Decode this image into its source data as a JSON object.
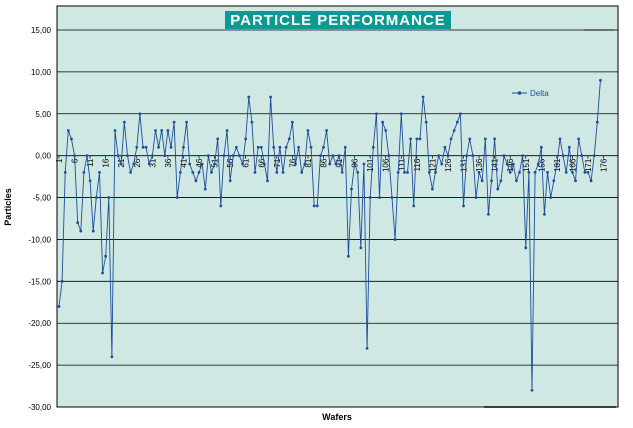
{
  "chart_data": {
    "type": "line",
    "title": "PARTICLE PERFORMANCE",
    "xlabel": "Wafers",
    "ylabel": "Particles",
    "ylim": [
      -30,
      15
    ],
    "yticks": [
      "15,00",
      "10,00",
      "5,00",
      "0,00",
      "-5,00",
      "-10,00",
      "-15,00",
      "-20,00",
      "-25,00",
      "-30,00"
    ],
    "xlim": [
      1,
      180
    ],
    "xticks": [
      1,
      6,
      11,
      16,
      21,
      26,
      31,
      36,
      41,
      46,
      51,
      56,
      61,
      66,
      71,
      76,
      81,
      86,
      91,
      96,
      101,
      106,
      111,
      116,
      121,
      126,
      131,
      136,
      141,
      146,
      151,
      156,
      161,
      166,
      171,
      176
    ],
    "grid": true,
    "legend_position": "right",
    "colors": {
      "plot_bg": "#cfe8e4",
      "line": "#1f4e9a",
      "title_bar": "#0b9a93",
      "grid": "#000000"
    },
    "series": [
      {
        "name": "Delta",
        "values": [
          -18,
          -15,
          -2,
          3,
          2,
          0,
          -8,
          -9,
          -2,
          0,
          -3,
          -9,
          -5,
          -2,
          -14,
          -12,
          -5,
          -24,
          3,
          0,
          -1,
          4,
          0,
          -2,
          -1,
          1,
          5,
          1,
          1,
          -1,
          0,
          3,
          1,
          3,
          0,
          3,
          1,
          4,
          -5,
          -2,
          1,
          4,
          -1,
          -2,
          -3,
          -2,
          -1,
          -4,
          0,
          -2,
          -1,
          2,
          -6,
          0,
          3,
          -3,
          0,
          1,
          0,
          -1,
          2,
          7,
          4,
          -2,
          1,
          1,
          -1,
          -3,
          7,
          1,
          -2,
          1,
          -2,
          1,
          2,
          4,
          -1,
          1,
          -2,
          -1,
          3,
          1,
          -6,
          -6,
          0,
          1,
          3,
          -1,
          0,
          -1,
          0,
          -2,
          1,
          -12,
          -4,
          -1,
          -2,
          -11,
          -1,
          -23,
          -5,
          1,
          5,
          -5,
          4,
          3,
          0,
          -5,
          -10,
          -2,
          5,
          -2,
          -2,
          2,
          -6,
          2,
          2,
          7,
          4,
          -2,
          -4,
          -2,
          0,
          -1,
          1,
          0,
          2,
          3,
          4,
          5,
          -6,
          0,
          2,
          0,
          -5,
          -2,
          -3,
          2,
          -7,
          -3,
          2,
          -4,
          -3,
          0,
          -1,
          -2,
          -1,
          -3,
          -2,
          0,
          -11,
          -2,
          -28,
          -2,
          -1,
          1,
          -7,
          -2,
          -5,
          -3,
          -1,
          2,
          0,
          -2,
          1,
          -2,
          -3,
          2,
          0,
          -2,
          -2,
          -3,
          0,
          4,
          9
        ]
      }
    ]
  }
}
